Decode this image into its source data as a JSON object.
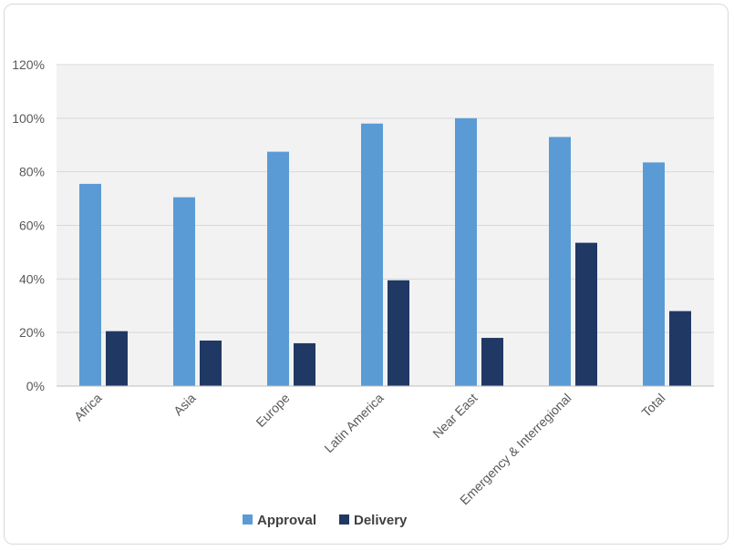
{
  "chart_data": {
    "type": "bar",
    "categories": [
      "Africa",
      "Asia",
      "Europe",
      "Latin America",
      "Near East",
      "Emergency & Interregional",
      "Total"
    ],
    "series": [
      {
        "name": "Approval",
        "color": "#5b9bd5",
        "values": [
          75.5,
          70.5,
          87.5,
          98,
          100,
          93,
          83.5
        ]
      },
      {
        "name": "Delivery",
        "color": "#203864",
        "values": [
          20.5,
          17,
          16,
          39.5,
          18,
          53.5,
          28
        ]
      }
    ],
    "y_ticks": [
      "0%",
      "20%",
      "40%",
      "60%",
      "80%",
      "100%",
      "120%"
    ],
    "ylim": [
      0,
      120
    ],
    "grid": true,
    "legend": "bottom",
    "plot_background": "#f2f2f2"
  }
}
